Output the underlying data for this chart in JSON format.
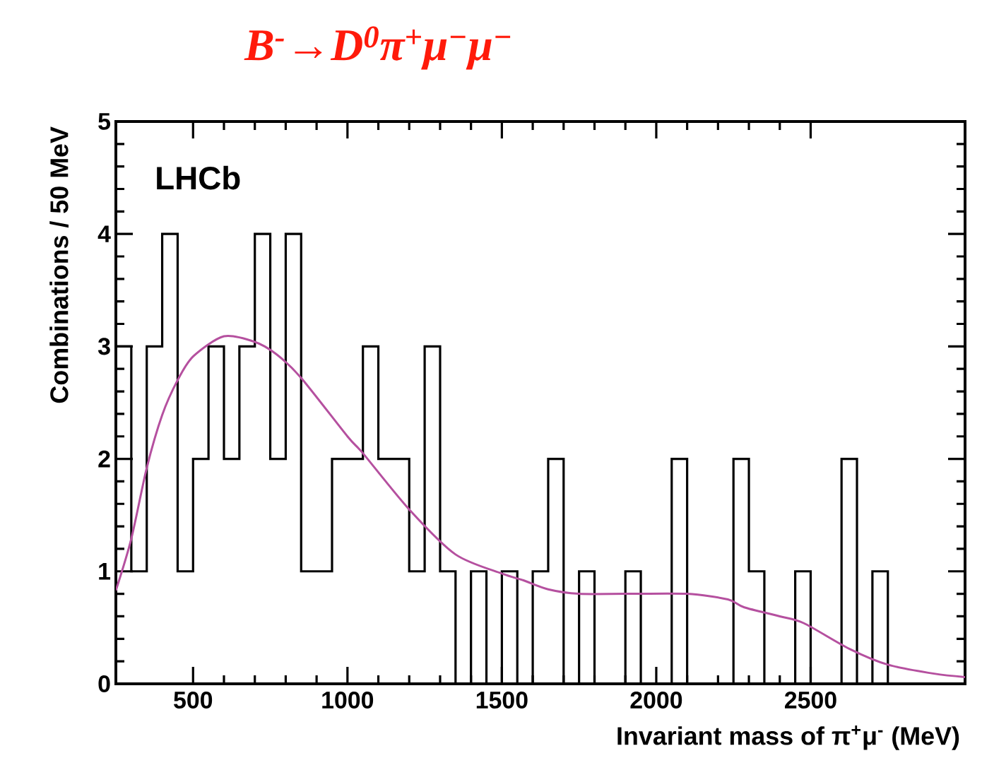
{
  "chart_data": {
    "type": "histogram",
    "title": "*B*$^{-}$→*D*$^{0}$π$^{+}$μ$^{−}$μ$^{−}$",
    "xlabel": "Invariant mass of π$^{+}$μ$^{-}$ (MeV)",
    "ylabel": "Combinations / 50 MeV",
    "annotations": [
      "LHCb"
    ],
    "bins": [
      250,
      300,
      350,
      400,
      450,
      500,
      550,
      600,
      650,
      700,
      750,
      800,
      850,
      900,
      950,
      1000,
      1050,
      1100,
      1150,
      1200,
      1250,
      1300,
      1350,
      1400,
      1450,
      1500,
      1550,
      1600,
      1650,
      1700,
      1750,
      1800,
      1850,
      1900,
      1950,
      2000,
      2050,
      2100,
      2150,
      2200,
      2250,
      2300,
      2350,
      2400,
      2450,
      2500,
      2550,
      2600,
      2650,
      2700,
      2750,
      2800,
      2850,
      2900,
      2950,
      3000
    ],
    "values": [
      3,
      1,
      3,
      4,
      1,
      2,
      3,
      2,
      3,
      4,
      2,
      4,
      1,
      1,
      2,
      2,
      3,
      2,
      2,
      1,
      3,
      1,
      0,
      1,
      0,
      1,
      0,
      1,
      2,
      0,
      1,
      0,
      0,
      1,
      0,
      0,
      2,
      0,
      0,
      0,
      2,
      1,
      0,
      0,
      1,
      0,
      0,
      2,
      0,
      1,
      0,
      0,
      0,
      0,
      0
    ],
    "color": "#000000",
    "series": [
      {
        "type": "line",
        "color": "#b5509f",
        "x": [
          250,
          300,
          350,
          400,
          450,
          500,
          600,
          700,
          770,
          850,
          1000,
          1050,
          1200,
          1350,
          1500,
          1570,
          1650,
          1750,
          1900,
          2100,
          2232,
          2285,
          2400,
          2477,
          2626,
          2750,
          2900,
          3000
        ],
        "values": [
          0.83,
          1.29,
          1.92,
          2.39,
          2.7,
          2.91,
          3.09,
          3.04,
          2.93,
          2.72,
          2.2,
          2.05,
          1.55,
          1.15,
          0.98,
          0.92,
          0.84,
          0.8,
          0.8,
          0.8,
          0.75,
          0.68,
          0.6,
          0.54,
          0.31,
          0.17,
          0.09,
          0.06
        ]
      }
    ],
    "xlim": [
      250,
      3000
    ],
    "ylim": [
      0,
      5
    ],
    "xticks": [
      500,
      1000,
      1500,
      2000,
      2500
    ],
    "yticks": [
      0,
      1,
      2,
      3,
      4,
      5
    ]
  }
}
